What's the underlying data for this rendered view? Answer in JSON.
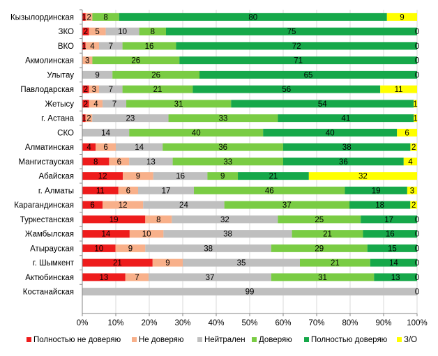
{
  "chart_data": {
    "type": "bar",
    "orientation": "horizontal",
    "stacked": "percent",
    "categories": [
      "Кызылординская",
      "ЗКО",
      "ВКО",
      "Акмолинская",
      "Улытау",
      "Павлодарская",
      "Жетысу",
      "г. Астана",
      "СКО",
      "Алматинская",
      "Мангистауская",
      "Абайская",
      "г. Алматы",
      "Карагандинская",
      "Туркестанская",
      "Жамбылская",
      "Атырауская",
      "г. Шымкент",
      "Актюбинская",
      "Костанайская"
    ],
    "series": [
      {
        "name": "Полностью не доверяю",
        "color": "#ee1c1c",
        "values": [
          1,
          2,
          1,
          0,
          0,
          2,
          2,
          1,
          0,
          4,
          8,
          12,
          11,
          6,
          19,
          14,
          10,
          21,
          13,
          0
        ]
      },
      {
        "name": "Не доверяю",
        "color": "#f8b08a",
        "values": [
          2,
          5,
          4,
          3,
          0,
          3,
          4,
          2,
          0,
          6,
          6,
          9,
          6,
          12,
          8,
          10,
          9,
          9,
          7,
          0
        ]
      },
      {
        "name": "Нейтрален",
        "color": "#bfbfbf",
        "values": [
          0,
          10,
          7,
          0,
          9,
          7,
          7,
          23,
          14,
          14,
          13,
          16,
          17,
          24,
          32,
          38,
          38,
          35,
          37,
          99
        ]
      },
      {
        "name": "Доверяю",
        "color": "#7acc44",
        "values": [
          8,
          8,
          16,
          26,
          26,
          21,
          31,
          33,
          40,
          36,
          33,
          9,
          46,
          37,
          25,
          21,
          29,
          21,
          31,
          0
        ]
      },
      {
        "name": "Полностью доверяю",
        "color": "#16a84a",
        "values": [
          80,
          75,
          72,
          71,
          65,
          56,
          54,
          41,
          40,
          38,
          36,
          21,
          19,
          18,
          17,
          16,
          15,
          14,
          13,
          0
        ]
      },
      {
        "name": "З/О",
        "color": "#ffff00",
        "values": [
          9,
          0,
          0,
          0,
          0,
          11,
          1,
          1,
          6,
          2,
          4,
          32,
          3,
          2,
          0,
          0,
          0,
          0,
          0,
          0
        ]
      }
    ],
    "xaxis_ticks": [
      "0%",
      "10%",
      "20%",
      "30%",
      "40%",
      "50%",
      "60%",
      "70%",
      "80%",
      "90%",
      "100%"
    ],
    "xlim": [
      0,
      100
    ],
    "legend_position": "bottom",
    "grid": "vertical"
  }
}
